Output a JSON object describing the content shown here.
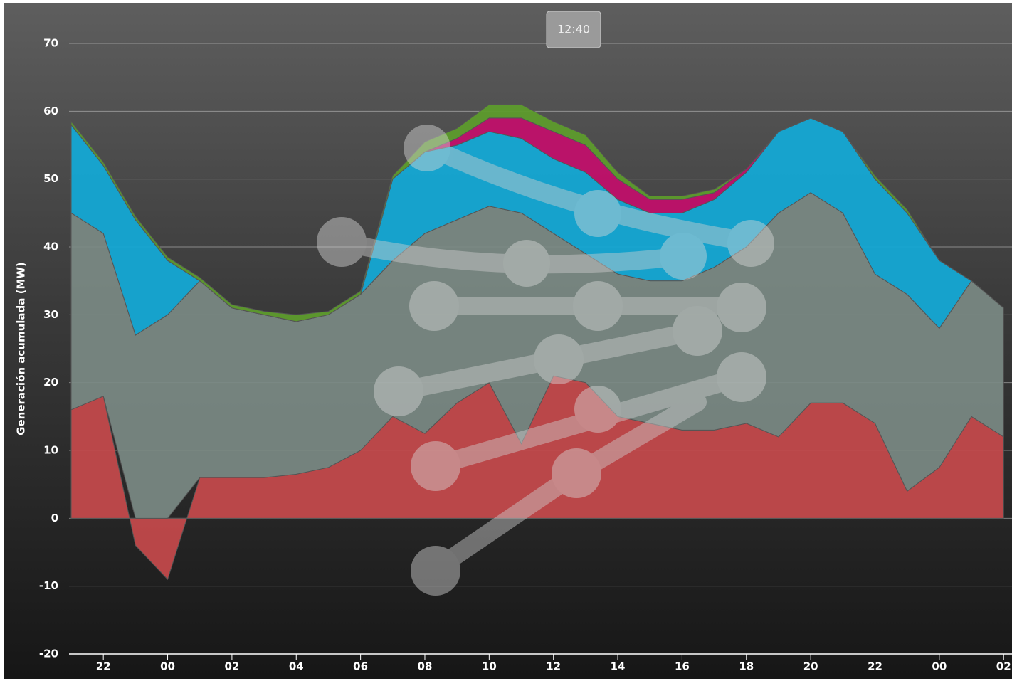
{
  "chart_data": {
    "type": "stacked-area",
    "y_label": "Generación acumulada (MW)",
    "tooltip": "12:40",
    "categories": [
      null,
      "22",
      null,
      "00",
      null,
      "02",
      null,
      "04",
      null,
      "06",
      null,
      "08",
      null,
      "10",
      null,
      "12",
      null,
      "14",
      null,
      "16",
      null,
      "18",
      null,
      "20",
      null,
      "22",
      null,
      "00",
      null,
      "02"
    ],
    "series": [
      {
        "color": "#c2494b",
        "values": [
          16,
          18,
          -4,
          -9,
          6,
          6,
          6,
          6.5,
          7.5,
          10,
          15,
          12.5,
          17,
          20,
          11,
          21,
          20,
          15,
          14,
          13,
          13,
          14,
          12,
          17,
          17,
          14,
          4,
          7.5,
          15,
          12
        ]
      },
      {
        "color": "#7b8a84",
        "values": [
          29,
          24,
          27,
          30,
          29,
          25,
          24,
          22.5,
          22.5,
          23,
          23,
          29.5,
          27,
          26,
          34,
          21,
          19,
          21,
          21,
          22,
          24,
          26,
          33,
          31,
          28,
          22,
          29,
          20.5,
          20,
          19
        ]
      },
      {
        "color": "#14a8d4",
        "values": [
          13,
          10,
          17,
          8,
          0,
          0,
          0,
          0,
          0,
          0,
          12,
          12,
          11,
          11,
          11,
          11,
          12,
          11,
          10,
          10,
          10,
          11,
          12,
          11,
          12,
          14,
          12,
          10,
          0,
          0
        ]
      },
      {
        "color": "#c0106a",
        "values": [
          0,
          0,
          0,
          0,
          0,
          0,
          0,
          0,
          0,
          0,
          0,
          0,
          1,
          2,
          3,
          4,
          4,
          3,
          2,
          2,
          1,
          0.5,
          0,
          0,
          0,
          0,
          0,
          0,
          0,
          0
        ]
      },
      {
        "color": "#5d9b2c",
        "values": [
          0.5,
          0.5,
          0.5,
          0.5,
          0.5,
          0.5,
          0.5,
          1,
          0.5,
          0.5,
          0.5,
          1.5,
          1.5,
          2,
          2,
          1.5,
          1.5,
          1,
          0.5,
          0.5,
          0.5,
          0,
          0,
          0,
          0,
          0.5,
          0.5,
          0,
          0,
          0
        ]
      }
    ],
    "ylim": [
      -20,
      70
    ],
    "yticks": [
      -20,
      -10,
      0,
      10,
      20,
      30,
      40,
      50,
      60,
      70
    ],
    "grid": true
  }
}
